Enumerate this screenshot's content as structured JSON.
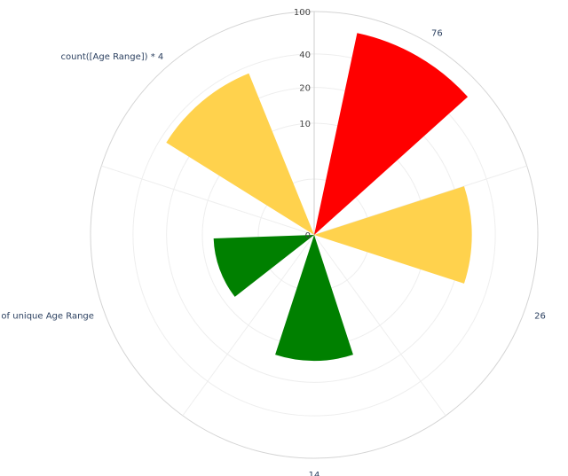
{
  "chart_data": {
    "type": "barpolar",
    "radial_axis": {
      "ticks": [
        "0",
        "10",
        "20",
        "40",
        "100"
      ],
      "range": [
        0,
        100
      ]
    },
    "angular_labels": [
      {
        "text": "76",
        "angle_deg": 60
      },
      {
        "text": "26",
        "angle_deg": -20
      },
      {
        "text": "14",
        "angle_deg": -90
      },
      {
        "text": "# of unique Age Range",
        "angle_deg": 200
      },
      {
        "text": "count([Age Range]) * 4",
        "angle_deg": 130
      }
    ],
    "grid": true,
    "bars": [
      {
        "angle_deg": 60,
        "value": 76,
        "color": "#ff0000"
      },
      {
        "angle_deg": 0,
        "value": 26,
        "color": "#ffd24d"
      },
      {
        "angle_deg": -90,
        "value": 14,
        "color": "#008000"
      },
      {
        "angle_deg": 200,
        "value": 9,
        "color": "#008000"
      },
      {
        "angle_deg": 130,
        "value": 36,
        "color": "#ffd24d"
      }
    ],
    "bar_width_deg": 36
  }
}
